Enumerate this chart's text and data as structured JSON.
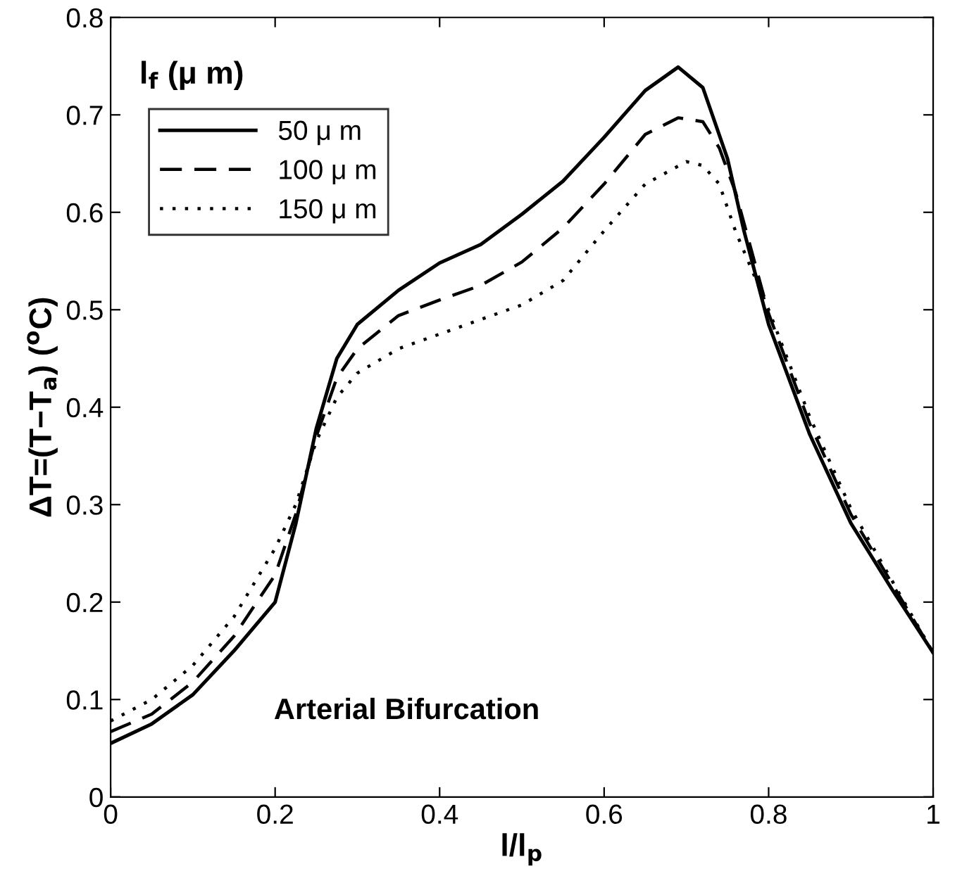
{
  "chart_data": {
    "type": "line",
    "xlabel": "l/l$_{p}$",
    "ylabel": "ΔT=(T−T$_{a}$) ($^{o}$C)",
    "legend_title": "l$_{f}$ (μ m)",
    "annotations": [
      {
        "text": "Arterial Bifurcation"
      }
    ],
    "xlim": [
      0,
      1
    ],
    "ylim": [
      0,
      0.8
    ],
    "xticks": [
      0,
      0.2,
      0.4,
      0.6,
      0.8,
      1
    ],
    "yticks": [
      0,
      0.1,
      0.2,
      0.3,
      0.4,
      0.5,
      0.6,
      0.7,
      0.8
    ],
    "grid": false,
    "legend": "top left",
    "marker": "none",
    "series": [
      {
        "name": "50 μ m",
        "color": "#000000",
        "line_style": "solid",
        "x": [
          0,
          0.05,
          0.1,
          0.15,
          0.2,
          0.225,
          0.25,
          0.275,
          0.3,
          0.35,
          0.4,
          0.45,
          0.5,
          0.55,
          0.6,
          0.65,
          0.69,
          0.72,
          0.75,
          0.77,
          0.8,
          0.85,
          0.9,
          0.95,
          1
        ],
        "values": [
          0.055,
          0.075,
          0.105,
          0.15,
          0.2,
          0.28,
          0.378,
          0.45,
          0.485,
          0.52,
          0.548,
          0.567,
          0.598,
          0.632,
          0.677,
          0.725,
          0.749,
          0.728,
          0.655,
          0.581,
          0.485,
          0.372,
          0.281,
          0.213,
          0.148
        ]
      },
      {
        "name": "100 μ m",
        "color": "#000000",
        "line_style": "dashed",
        "x": [
          0,
          0.05,
          0.1,
          0.15,
          0.2,
          0.225,
          0.25,
          0.275,
          0.3,
          0.35,
          0.4,
          0.45,
          0.5,
          0.55,
          0.6,
          0.65,
          0.69,
          0.72,
          0.74,
          0.76,
          0.78,
          0.8,
          0.85,
          0.9,
          0.95,
          1
        ],
        "values": [
          0.067,
          0.085,
          0.118,
          0.165,
          0.228,
          0.29,
          0.37,
          0.43,
          0.46,
          0.494,
          0.51,
          0.525,
          0.549,
          0.584,
          0.629,
          0.68,
          0.697,
          0.693,
          0.666,
          0.62,
          0.558,
          0.496,
          0.383,
          0.29,
          0.219,
          0.148
        ]
      },
      {
        "name": "150 μ m",
        "color": "#000000",
        "line_style": "dotted",
        "x": [
          0,
          0.05,
          0.1,
          0.15,
          0.2,
          0.225,
          0.25,
          0.275,
          0.3,
          0.35,
          0.4,
          0.45,
          0.5,
          0.55,
          0.6,
          0.65,
          0.7,
          0.72,
          0.74,
          0.76,
          0.78,
          0.8,
          0.85,
          0.9,
          0.95,
          1
        ],
        "values": [
          0.078,
          0.1,
          0.135,
          0.185,
          0.255,
          0.3,
          0.365,
          0.41,
          0.435,
          0.46,
          0.475,
          0.49,
          0.505,
          0.53,
          0.581,
          0.629,
          0.652,
          0.648,
          0.629,
          0.58,
          0.54,
          0.5,
          0.39,
          0.296,
          0.222,
          0.148
        ]
      }
    ]
  }
}
